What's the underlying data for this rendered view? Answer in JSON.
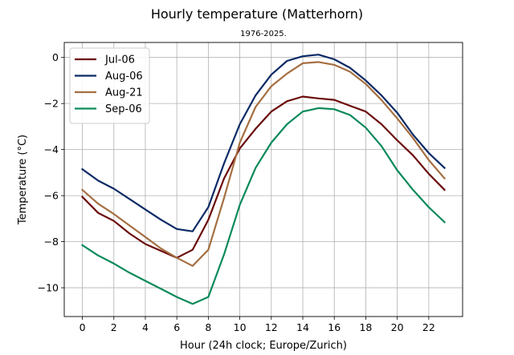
{
  "chart_data": {
    "type": "line",
    "title": "Hourly temperature (Matterhorn)",
    "subtitle": "1976-2025.",
    "xlabel": "Hour (24h clock; Europe/Zurich)",
    "ylabel": "Temperature (°C)",
    "xlim": [
      -1.15,
      24.15
    ],
    "ylim": [
      -11.25,
      0.65
    ],
    "xticks": [
      0,
      2,
      4,
      6,
      8,
      10,
      12,
      14,
      16,
      18,
      20,
      22
    ],
    "yticks": [
      0,
      -2,
      -4,
      -6,
      -8,
      -10
    ],
    "grid": true,
    "legend_position": "top-left",
    "x": [
      0,
      1,
      2,
      3,
      4,
      5,
      6,
      7,
      8,
      9,
      10,
      11,
      12,
      13,
      14,
      15,
      16,
      17,
      18,
      19,
      20,
      21,
      22,
      23
    ],
    "series": [
      {
        "name": "Jul-06",
        "color": "#6b0a0a",
        "values": [
          -6.05,
          -6.75,
          -7.1,
          -7.65,
          -8.1,
          -8.4,
          -8.7,
          -8.35,
          -7.05,
          -5.25,
          -3.95,
          -3.1,
          -2.35,
          -1.9,
          -1.7,
          -1.78,
          -1.84,
          -2.1,
          -2.35,
          -2.9,
          -3.6,
          -4.25,
          -5.05,
          -5.75
        ]
      },
      {
        "name": "Aug-06",
        "color": "#0a2a66",
        "values": [
          -4.85,
          -5.35,
          -5.7,
          -6.15,
          -6.6,
          -7.05,
          -7.45,
          -7.55,
          -6.5,
          -4.6,
          -2.9,
          -1.65,
          -0.75,
          -0.15,
          0.05,
          0.12,
          -0.08,
          -0.45,
          -1.0,
          -1.65,
          -2.4,
          -3.35,
          -4.15,
          -4.8
        ]
      },
      {
        "name": "Aug-21",
        "color": "#a56f42",
        "values": [
          -5.75,
          -6.35,
          -6.8,
          -7.3,
          -7.8,
          -8.3,
          -8.7,
          -9.05,
          -8.35,
          -6.1,
          -3.7,
          -2.15,
          -1.25,
          -0.7,
          -0.25,
          -0.2,
          -0.32,
          -0.62,
          -1.15,
          -1.85,
          -2.65,
          -3.5,
          -4.45,
          -5.25
        ]
      },
      {
        "name": "Sep-06",
        "color": "#0a8a5a",
        "values": [
          -8.15,
          -8.6,
          -8.95,
          -9.35,
          -9.7,
          -10.05,
          -10.4,
          -10.7,
          -10.4,
          -8.55,
          -6.4,
          -4.8,
          -3.7,
          -2.9,
          -2.35,
          -2.2,
          -2.25,
          -2.5,
          -3.05,
          -3.85,
          -4.9,
          -5.75,
          -6.5,
          -7.15
        ]
      }
    ]
  }
}
